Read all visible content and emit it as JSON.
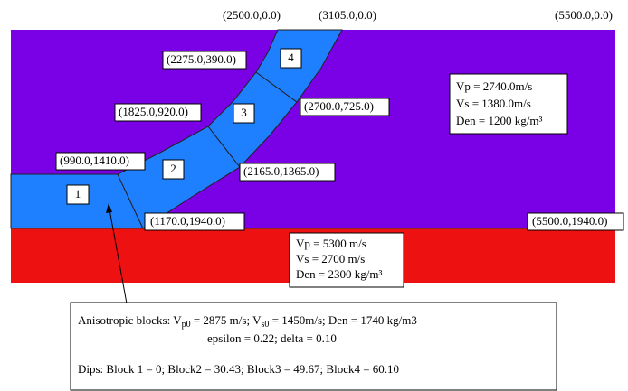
{
  "coordinate_labels": [
    "(2500.0,0.0)",
    "(3105.0,0.0)",
    "(5500.0,0.0)",
    "(2275.0,390.0)",
    "(1825.0,920.0)",
    "(2700.0,725.0)",
    "(990.0,1410.0)",
    "(2165.0,1365.0)",
    "(1170.0,1940.0)",
    "(5500.0,1940.0)"
  ],
  "block_labels": [
    "1",
    "2",
    "3",
    "4"
  ],
  "upper_layer": {
    "lines": [
      "Vp = 2740.0m/s",
      "Vs = 1380.0m/s",
      "Den = 1200 kg/m³"
    ]
  },
  "lower_layer": {
    "lines": [
      "Vp = 5300 m/s",
      "Vs = 2700 m/s",
      "Den = 2300 kg/m³"
    ]
  },
  "note": {
    "line1": [
      "Anisotropic blocks:  V",
      "p0",
      " = 2875 m/s;  V",
      "s0",
      " = 1450m/s; Den = 1740 kg/m3"
    ],
    "line2": "epsilon = 0.22; delta = 0.10",
    "line3": "Dips: Block 1 = 0; Block2 = 30.43; Block3 = 49.67; Block4 = 60.10"
  }
}
